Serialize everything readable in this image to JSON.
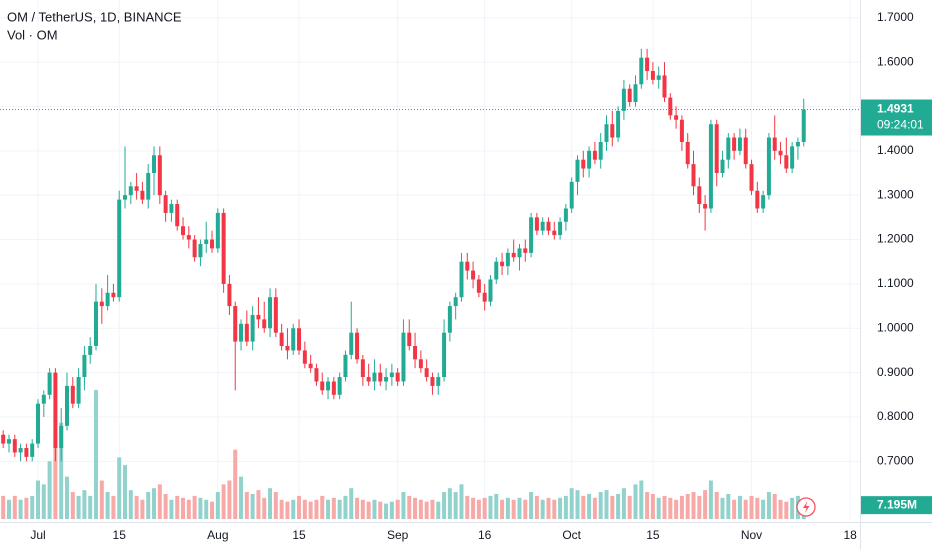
{
  "chart_data": {
    "type": "candlestick",
    "title": "OM / TetherUS, 1D, BINANCE",
    "volume_title": "Vol · OM",
    "up_color": "#22ab94",
    "down_color": "#f23645",
    "volume_up_color": "#92d2cc",
    "volume_down_color": "#f7a9a7",
    "grid": true,
    "xlim": [
      -0.55,
      147.7
    ],
    "xticks": [
      {
        "value": 6,
        "label": "Jul"
      },
      {
        "value": 20,
        "label": "15"
      },
      {
        "value": 37,
        "label": "Aug"
      },
      {
        "value": 51,
        "label": "15"
      },
      {
        "value": 68,
        "label": "Sep"
      },
      {
        "value": 83,
        "label": "16"
      },
      {
        "value": 98,
        "label": "Oct"
      },
      {
        "value": 112,
        "label": "15"
      },
      {
        "value": 129,
        "label": "Nov"
      },
      {
        "value": 146,
        "label": "18"
      }
    ],
    "ylim": [
      0.57,
      1.74
    ],
    "yticks": [
      {
        "value": 0.7,
        "label": "0.7000"
      },
      {
        "value": 0.8,
        "label": "0.8000"
      },
      {
        "value": 0.9,
        "label": "0.9000"
      },
      {
        "value": 1.0,
        "label": "1.0000"
      },
      {
        "value": 1.1,
        "label": "1.1000"
      },
      {
        "value": 1.2,
        "label": "1.2000"
      },
      {
        "value": 1.3,
        "label": "1.3000"
      },
      {
        "value": 1.4,
        "label": "1.4000"
      },
      {
        "value": 1.5,
        "label": "1.5000"
      },
      {
        "value": 1.6,
        "label": "1.6000"
      },
      {
        "value": 1.7,
        "label": "1.7000"
      }
    ],
    "volume_lim": [
      0,
      100000000
    ],
    "countdown": "09:24:01",
    "last_volume_label": "7.195M",
    "candles": [
      [
        0.76,
        0.77,
        0.73,
        0.74
      ],
      [
        0.74,
        0.76,
        0.72,
        0.75
      ],
      [
        0.75,
        0.76,
        0.71,
        0.72
      ],
      [
        0.72,
        0.74,
        0.7,
        0.73
      ],
      [
        0.73,
        0.74,
        0.7,
        0.71
      ],
      [
        0.71,
        0.75,
        0.7,
        0.74
      ],
      [
        0.74,
        0.84,
        0.73,
        0.83
      ],
      [
        0.83,
        0.86,
        0.8,
        0.85
      ],
      [
        0.85,
        0.91,
        0.84,
        0.9
      ],
      [
        0.9,
        0.91,
        0.7,
        0.73
      ],
      [
        0.73,
        0.82,
        0.7,
        0.78
      ],
      [
        0.78,
        0.9,
        0.77,
        0.87
      ],
      [
        0.87,
        0.89,
        0.82,
        0.83
      ],
      [
        0.83,
        0.91,
        0.82,
        0.89
      ],
      [
        0.89,
        0.96,
        0.86,
        0.94
      ],
      [
        0.94,
        0.98,
        0.92,
        0.96
      ],
      [
        0.96,
        1.1,
        0.95,
        1.06
      ],
      [
        1.06,
        1.09,
        1.01,
        1.05
      ],
      [
        1.05,
        1.12,
        1.04,
        1.08
      ],
      [
        1.08,
        1.1,
        1.06,
        1.07
      ],
      [
        1.07,
        1.31,
        1.06,
        1.29
      ],
      [
        1.29,
        1.41,
        1.27,
        1.3
      ],
      [
        1.3,
        1.33,
        1.28,
        1.32
      ],
      [
        1.32,
        1.35,
        1.29,
        1.31
      ],
      [
        1.31,
        1.33,
        1.28,
        1.29
      ],
      [
        1.29,
        1.37,
        1.27,
        1.35
      ],
      [
        1.35,
        1.41,
        1.3,
        1.39
      ],
      [
        1.39,
        1.41,
        1.28,
        1.3
      ],
      [
        1.3,
        1.31,
        1.24,
        1.26
      ],
      [
        1.26,
        1.29,
        1.24,
        1.28
      ],
      [
        1.28,
        1.29,
        1.22,
        1.23
      ],
      [
        1.23,
        1.25,
        1.2,
        1.21
      ],
      [
        1.21,
        1.23,
        1.18,
        1.2
      ],
      [
        1.2,
        1.21,
        1.15,
        1.16
      ],
      [
        1.16,
        1.2,
        1.14,
        1.19
      ],
      [
        1.19,
        1.24,
        1.17,
        1.2
      ],
      [
        1.2,
        1.22,
        1.17,
        1.18
      ],
      [
        1.18,
        1.27,
        1.17,
        1.26
      ],
      [
        1.26,
        1.27,
        1.08,
        1.1
      ],
      [
        1.1,
        1.12,
        1.03,
        1.05
      ],
      [
        1.05,
        1.06,
        0.86,
        0.97
      ],
      [
        0.97,
        1.02,
        0.95,
        1.01
      ],
      [
        1.01,
        1.04,
        0.96,
        0.97
      ],
      [
        0.97,
        1.05,
        0.95,
        1.03
      ],
      [
        1.03,
        1.07,
        1.0,
        1.02
      ],
      [
        1.02,
        1.06,
        0.99,
        1.0
      ],
      [
        1.0,
        1.09,
        0.98,
        1.07
      ],
      [
        1.07,
        1.09,
        0.98,
        0.99
      ],
      [
        0.99,
        1.01,
        0.95,
        0.96
      ],
      [
        0.96,
        1.0,
        0.93,
        0.95
      ],
      [
        0.95,
        1.01,
        0.94,
        1.0
      ],
      [
        1.0,
        1.02,
        0.94,
        0.95
      ],
      [
        0.95,
        0.97,
        0.91,
        0.92
      ],
      [
        0.92,
        0.94,
        0.9,
        0.91
      ],
      [
        0.91,
        0.92,
        0.87,
        0.88
      ],
      [
        0.88,
        0.9,
        0.85,
        0.86
      ],
      [
        0.86,
        0.89,
        0.84,
        0.88
      ],
      [
        0.88,
        0.89,
        0.84,
        0.85
      ],
      [
        0.85,
        0.9,
        0.84,
        0.89
      ],
      [
        0.89,
        0.95,
        0.88,
        0.94
      ],
      [
        0.94,
        1.06,
        0.93,
        0.99
      ],
      [
        0.99,
        1.0,
        0.92,
        0.93
      ],
      [
        0.93,
        0.94,
        0.87,
        0.89
      ],
      [
        0.89,
        0.92,
        0.87,
        0.88
      ],
      [
        0.88,
        0.93,
        0.86,
        0.9
      ],
      [
        0.9,
        0.92,
        0.87,
        0.88
      ],
      [
        0.88,
        0.91,
        0.86,
        0.89
      ],
      [
        0.89,
        0.92,
        0.87,
        0.9
      ],
      [
        0.9,
        0.91,
        0.87,
        0.88
      ],
      [
        0.88,
        1.02,
        0.87,
        0.99
      ],
      [
        0.99,
        1.02,
        0.95,
        0.96
      ],
      [
        0.96,
        0.99,
        0.91,
        0.93
      ],
      [
        0.93,
        0.95,
        0.9,
        0.91
      ],
      [
        0.91,
        0.93,
        0.88,
        0.89
      ],
      [
        0.89,
        0.9,
        0.85,
        0.87
      ],
      [
        0.87,
        0.9,
        0.85,
        0.89
      ],
      [
        0.89,
        1.02,
        0.88,
        0.99
      ],
      [
        0.99,
        1.06,
        0.97,
        1.05
      ],
      [
        1.05,
        1.08,
        1.02,
        1.07
      ],
      [
        1.07,
        1.17,
        1.06,
        1.15
      ],
      [
        1.15,
        1.17,
        1.11,
        1.13
      ],
      [
        1.13,
        1.15,
        1.09,
        1.11
      ],
      [
        1.11,
        1.12,
        1.07,
        1.08
      ],
      [
        1.08,
        1.1,
        1.04,
        1.06
      ],
      [
        1.06,
        1.12,
        1.05,
        1.11
      ],
      [
        1.11,
        1.16,
        1.1,
        1.15
      ],
      [
        1.15,
        1.17,
        1.12,
        1.14
      ],
      [
        1.14,
        1.18,
        1.12,
        1.17
      ],
      [
        1.17,
        1.2,
        1.15,
        1.16
      ],
      [
        1.16,
        1.19,
        1.13,
        1.18
      ],
      [
        1.18,
        1.2,
        1.15,
        1.17
      ],
      [
        1.17,
        1.26,
        1.16,
        1.25
      ],
      [
        1.25,
        1.26,
        1.21,
        1.22
      ],
      [
        1.22,
        1.25,
        1.21,
        1.24
      ],
      [
        1.24,
        1.25,
        1.21,
        1.22
      ],
      [
        1.22,
        1.24,
        1.2,
        1.21
      ],
      [
        1.21,
        1.25,
        1.2,
        1.24
      ],
      [
        1.24,
        1.28,
        1.22,
        1.27
      ],
      [
        1.27,
        1.34,
        1.26,
        1.33
      ],
      [
        1.33,
        1.39,
        1.3,
        1.38
      ],
      [
        1.38,
        1.4,
        1.34,
        1.36
      ],
      [
        1.36,
        1.41,
        1.34,
        1.4
      ],
      [
        1.4,
        1.42,
        1.37,
        1.38
      ],
      [
        1.38,
        1.44,
        1.36,
        1.42
      ],
      [
        1.42,
        1.48,
        1.4,
        1.46
      ],
      [
        1.46,
        1.49,
        1.41,
        1.43
      ],
      [
        1.43,
        1.5,
        1.42,
        1.49
      ],
      [
        1.49,
        1.56,
        1.47,
        1.54
      ],
      [
        1.54,
        1.55,
        1.5,
        1.51
      ],
      [
        1.51,
        1.57,
        1.5,
        1.55
      ],
      [
        1.55,
        1.63,
        1.54,
        1.61
      ],
      [
        1.61,
        1.63,
        1.56,
        1.58
      ],
      [
        1.58,
        1.6,
        1.55,
        1.56
      ],
      [
        1.56,
        1.59,
        1.54,
        1.57
      ],
      [
        1.57,
        1.6,
        1.51,
        1.52
      ],
      [
        1.52,
        1.53,
        1.47,
        1.48
      ],
      [
        1.48,
        1.5,
        1.45,
        1.47
      ],
      [
        1.47,
        1.48,
        1.4,
        1.42
      ],
      [
        1.42,
        1.44,
        1.36,
        1.37
      ],
      [
        1.37,
        1.4,
        1.3,
        1.32
      ],
      [
        1.32,
        1.34,
        1.26,
        1.28
      ],
      [
        1.28,
        1.3,
        1.22,
        1.27
      ],
      [
        1.27,
        1.47,
        1.26,
        1.46
      ],
      [
        1.46,
        1.47,
        1.32,
        1.35
      ],
      [
        1.35,
        1.4,
        1.34,
        1.38
      ],
      [
        1.38,
        1.44,
        1.36,
        1.43
      ],
      [
        1.43,
        1.44,
        1.38,
        1.4
      ],
      [
        1.4,
        1.45,
        1.39,
        1.43
      ],
      [
        1.43,
        1.45,
        1.36,
        1.37
      ],
      [
        1.37,
        1.38,
        1.3,
        1.31
      ],
      [
        1.31,
        1.33,
        1.26,
        1.27
      ],
      [
        1.27,
        1.31,
        1.26,
        1.3
      ],
      [
        1.3,
        1.44,
        1.29,
        1.43
      ],
      [
        1.43,
        1.48,
        1.38,
        1.4
      ],
      [
        1.4,
        1.42,
        1.37,
        1.39
      ],
      [
        1.39,
        1.43,
        1.35,
        1.36
      ],
      [
        1.36,
        1.42,
        1.35,
        1.41
      ],
      [
        1.41,
        1.43,
        1.38,
        1.42
      ],
      [
        1.42,
        1.5175,
        1.41,
        1.4931
      ]
    ],
    "volumes": [
      12000000,
      10000000,
      12000000,
      10000000,
      11000000,
      12000000,
      20000000,
      18000000,
      30000000,
      40000000,
      50000000,
      22000000,
      14000000,
      12000000,
      15000000,
      12000000,
      67000000,
      20000000,
      14000000,
      12000000,
      32000000,
      28000000,
      15000000,
      12000000,
      10000000,
      14000000,
      16000000,
      18000000,
      13000000,
      10000000,
      12000000,
      11000000,
      10000000,
      12000000,
      11000000,
      10000000,
      9000000,
      14000000,
      18000000,
      20000000,
      36000000,
      22000000,
      14000000,
      13000000,
      15000000,
      11000000,
      16000000,
      14000000,
      10000000,
      9000000,
      10000000,
      12000000,
      10000000,
      9000000,
      10000000,
      12000000,
      10000000,
      11000000,
      10000000,
      12000000,
      16000000,
      11000000,
      10000000,
      9000000,
      10000000,
      9000000,
      8000000,
      9000000,
      10000000,
      14000000,
      12000000,
      11000000,
      10000000,
      9000000,
      10000000,
      9000000,
      14000000,
      16000000,
      14000000,
      18000000,
      12000000,
      11000000,
      10000000,
      11000000,
      12000000,
      13000000,
      10000000,
      11000000,
      10000000,
      11000000,
      10000000,
      14000000,
      12000000,
      10000000,
      11000000,
      10000000,
      11000000,
      12000000,
      16000000,
      15000000,
      12000000,
      13000000,
      11000000,
      14000000,
      15000000,
      12000000,
      13000000,
      16000000,
      12000000,
      18000000,
      20000000,
      14000000,
      13000000,
      11000000,
      12000000,
      11000000,
      10000000,
      12000000,
      13000000,
      14000000,
      12000000,
      15000000,
      20000000,
      14000000,
      11000000,
      13000000,
      10000000,
      12000000,
      10000000,
      12000000,
      11000000,
      10000000,
      14000000,
      13000000,
      10000000,
      9000000,
      11000000,
      12000000,
      7195000
    ]
  }
}
